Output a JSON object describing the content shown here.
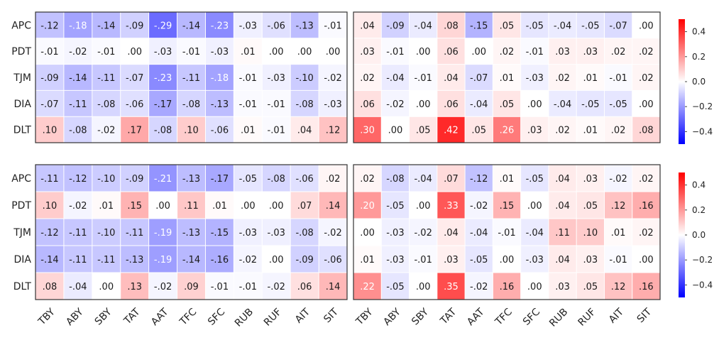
{
  "chart_data": [
    {
      "type": "heatmap",
      "panel": "top-left",
      "rows": [
        "APC",
        "PDT",
        "TJM",
        "DIA",
        "DLT"
      ],
      "columns": [
        "TBY",
        "ABY",
        "SBY",
        "TAT",
        "AAT",
        "TFC",
        "SFC",
        "RUB",
        "RUF",
        "AIT",
        "SIT"
      ],
      "values": [
        [
          -0.12,
          -0.18,
          -0.14,
          -0.09,
          -0.29,
          -0.14,
          -0.23,
          -0.03,
          -0.06,
          -0.13,
          -0.01
        ],
        [
          -0.01,
          -0.02,
          -0.01,
          0.0,
          -0.03,
          -0.01,
          -0.03,
          0.01,
          0.0,
          0.0,
          0.0
        ],
        [
          -0.09,
          -0.14,
          -0.11,
          -0.07,
          -0.23,
          -0.11,
          -0.18,
          -0.01,
          -0.03,
          -0.1,
          -0.02
        ],
        [
          -0.07,
          -0.11,
          -0.08,
          -0.06,
          -0.17,
          -0.08,
          -0.13,
          -0.01,
          -0.01,
          -0.08,
          -0.03
        ],
        [
          0.1,
          -0.08,
          -0.02,
          0.17,
          -0.08,
          0.1,
          -0.06,
          0.01,
          -0.01,
          0.04,
          0.12
        ]
      ],
      "labels": [
        [
          "-.12",
          "-.18",
          "-.14",
          "-.09",
          "-.29",
          "-.14",
          "-.23",
          "-.03",
          "-.06",
          "-.13",
          "-.01"
        ],
        [
          "-.01",
          "-.02",
          "-.01",
          ".00",
          "-.03",
          "-.01",
          "-.03",
          ".01",
          ".00",
          ".00",
          ".00"
        ],
        [
          "-.09",
          "-.14",
          "-.11",
          "-.07",
          "-.23",
          "-.11",
          "-.18",
          "-.01",
          "-.03",
          "-.10",
          "-.02"
        ],
        [
          "-.07",
          "-.11",
          "-.08",
          "-.06",
          "-.17",
          "-.08",
          "-.13",
          "-.01",
          "-.01",
          "-.08",
          "-.03"
        ],
        [
          ".10",
          "-.08",
          "-.02",
          ".17",
          "-.08",
          ".10",
          "-.06",
          ".01",
          "-.01",
          ".04",
          ".12"
        ]
      ],
      "show_row_labels": true,
      "show_col_labels": false
    },
    {
      "type": "heatmap",
      "panel": "top-right",
      "rows": [
        "APC",
        "PDT",
        "TJM",
        "DIA",
        "DLT"
      ],
      "columns": [
        "TBY",
        "ABY",
        "SBY",
        "TAT",
        "AAT",
        "TFC",
        "SFC",
        "RUB",
        "RUF",
        "AIT",
        "SIT"
      ],
      "values": [
        [
          0.04,
          -0.09,
          -0.04,
          0.08,
          -0.15,
          0.05,
          -0.05,
          -0.04,
          -0.05,
          -0.07,
          0.0
        ],
        [
          0.03,
          -0.01,
          0.0,
          0.06,
          0.0,
          0.02,
          -0.01,
          0.03,
          0.03,
          0.02,
          0.02
        ],
        [
          0.02,
          -0.04,
          -0.01,
          0.04,
          -0.07,
          0.01,
          -0.03,
          0.02,
          0.01,
          -0.01,
          0.02
        ],
        [
          0.06,
          -0.02,
          0.0,
          0.06,
          -0.04,
          0.05,
          0.0,
          -0.04,
          -0.05,
          -0.05,
          0.0
        ],
        [
          0.3,
          0.0,
          0.05,
          0.42,
          0.05,
          0.26,
          0.03,
          0.02,
          0.01,
          0.02,
          0.08
        ]
      ],
      "labels": [
        [
          ".04",
          "-.09",
          "-.04",
          ".08",
          "-.15",
          ".05",
          "-.05",
          "-.04",
          "-.05",
          "-.07",
          ".00"
        ],
        [
          ".03",
          "-.01",
          ".00",
          ".06",
          ".00",
          ".02",
          "-.01",
          ".03",
          ".03",
          ".02",
          ".02"
        ],
        [
          ".02",
          "-.04",
          "-.01",
          ".04",
          "-.07",
          ".01",
          "-.03",
          ".02",
          ".01",
          "-.01",
          ".02"
        ],
        [
          ".06",
          "-.02",
          ".00",
          ".06",
          "-.04",
          ".05",
          ".00",
          "-.04",
          "-.05",
          "-.05",
          ".00"
        ],
        [
          ".30",
          ".00",
          ".05",
          ".42",
          ".05",
          ".26",
          ".03",
          ".02",
          ".01",
          ".02",
          ".08"
        ]
      ],
      "show_row_labels": false,
      "show_col_labels": false
    },
    {
      "type": "heatmap",
      "panel": "bottom-left",
      "rows": [
        "APC",
        "PDT",
        "TJM",
        "DIA",
        "DLT"
      ],
      "columns": [
        "TBY",
        "ABY",
        "SBY",
        "TAT",
        "AAT",
        "TFC",
        "SFC",
        "RUB",
        "RUF",
        "AIT",
        "SIT"
      ],
      "values": [
        [
          -0.11,
          -0.12,
          -0.1,
          -0.09,
          -0.21,
          -0.13,
          -0.17,
          -0.05,
          -0.08,
          -0.06,
          0.02
        ],
        [
          0.1,
          -0.02,
          0.01,
          0.15,
          0.0,
          0.11,
          0.01,
          0.0,
          0.0,
          0.07,
          0.14
        ],
        [
          -0.12,
          -0.11,
          -0.1,
          -0.11,
          -0.19,
          -0.13,
          -0.15,
          -0.03,
          -0.03,
          -0.08,
          -0.02
        ],
        [
          -0.14,
          -0.11,
          -0.11,
          -0.13,
          -0.19,
          -0.14,
          -0.16,
          -0.02,
          0.0,
          -0.09,
          -0.06
        ],
        [
          0.08,
          -0.04,
          0.0,
          0.13,
          -0.02,
          0.09,
          -0.01,
          -0.01,
          -0.02,
          0.06,
          0.14
        ]
      ],
      "labels": [
        [
          "-.11",
          "-.12",
          "-.10",
          "-.09",
          "-.21",
          "-.13",
          "-.17",
          "-.05",
          "-.08",
          "-.06",
          ".02"
        ],
        [
          ".10",
          "-.02",
          ".01",
          ".15",
          ".00",
          ".11",
          ".01",
          ".00",
          ".00",
          ".07",
          ".14"
        ],
        [
          "-.12",
          "-.11",
          "-.10",
          "-.11",
          "-.19",
          "-.13",
          "-.15",
          "-.03",
          "-.03",
          "-.08",
          "-.02"
        ],
        [
          "-.14",
          "-.11",
          "-.11",
          "-.13",
          "-.19",
          "-.14",
          "-.16",
          "-.02",
          ".00",
          "-.09",
          "-.06"
        ],
        [
          ".08",
          "-.04",
          ".00",
          ".13",
          "-.02",
          ".09",
          "-.01",
          "-.01",
          "-.02",
          ".06",
          ".14"
        ]
      ],
      "show_row_labels": true,
      "show_col_labels": true
    },
    {
      "type": "heatmap",
      "panel": "bottom-right",
      "rows": [
        "APC",
        "PDT",
        "TJM",
        "DIA",
        "DLT"
      ],
      "columns": [
        "TBY",
        "ABY",
        "SBY",
        "TAT",
        "AAT",
        "TFC",
        "SFC",
        "RUB",
        "RUF",
        "AIT",
        "SIT"
      ],
      "values": [
        [
          0.02,
          -0.08,
          -0.04,
          0.07,
          -0.12,
          0.01,
          -0.05,
          0.04,
          0.03,
          -0.02,
          0.02
        ],
        [
          0.2,
          -0.05,
          0.0,
          0.33,
          -0.02,
          0.15,
          0.0,
          0.04,
          0.05,
          0.12,
          0.16
        ],
        [
          0.0,
          -0.03,
          -0.02,
          0.04,
          -0.04,
          -0.01,
          -0.04,
          0.11,
          0.1,
          0.01,
          0.02
        ],
        [
          0.01,
          -0.03,
          -0.01,
          0.03,
          -0.05,
          0.0,
          -0.03,
          0.04,
          0.03,
          -0.01,
          0.0
        ],
        [
          0.22,
          -0.05,
          0.0,
          0.35,
          -0.02,
          0.16,
          0.0,
          0.03,
          0.05,
          0.12,
          0.16
        ]
      ],
      "labels": [
        [
          ".02",
          "-.08",
          "-.04",
          ".07",
          "-.12",
          ".01",
          "-.05",
          ".04",
          ".03",
          "-.02",
          ".02"
        ],
        [
          ".20",
          "-.05",
          ".00",
          ".33",
          "-.02",
          ".15",
          ".00",
          ".04",
          ".05",
          ".12",
          ".16"
        ],
        [
          ".00",
          "-.03",
          "-.02",
          ".04",
          "-.04",
          "-.01",
          "-.04",
          ".11",
          ".10",
          ".01",
          ".02"
        ],
        [
          ".01",
          "-.03",
          "-.01",
          ".03",
          "-.05",
          ".00",
          "-.03",
          ".04",
          ".03",
          "-.01",
          ".00"
        ],
        [
          ".22",
          "-.05",
          ".00",
          ".35",
          "-.02",
          ".16",
          ".00",
          ".03",
          ".05",
          ".12",
          ".16"
        ]
      ],
      "show_row_labels": false,
      "show_col_labels": true
    }
  ],
  "colorbar": {
    "range": [
      -0.5,
      0.5
    ],
    "ticks": [
      0.4,
      0.2,
      0.0,
      -0.2,
      -0.4
    ],
    "tick_labels": [
      "0.4",
      "0.2",
      "0.0",
      "−0.2",
      "−0.4"
    ],
    "colors": {
      "negative": "#0000ff",
      "neutral": "#ffffff",
      "positive": "#ff0000"
    }
  }
}
